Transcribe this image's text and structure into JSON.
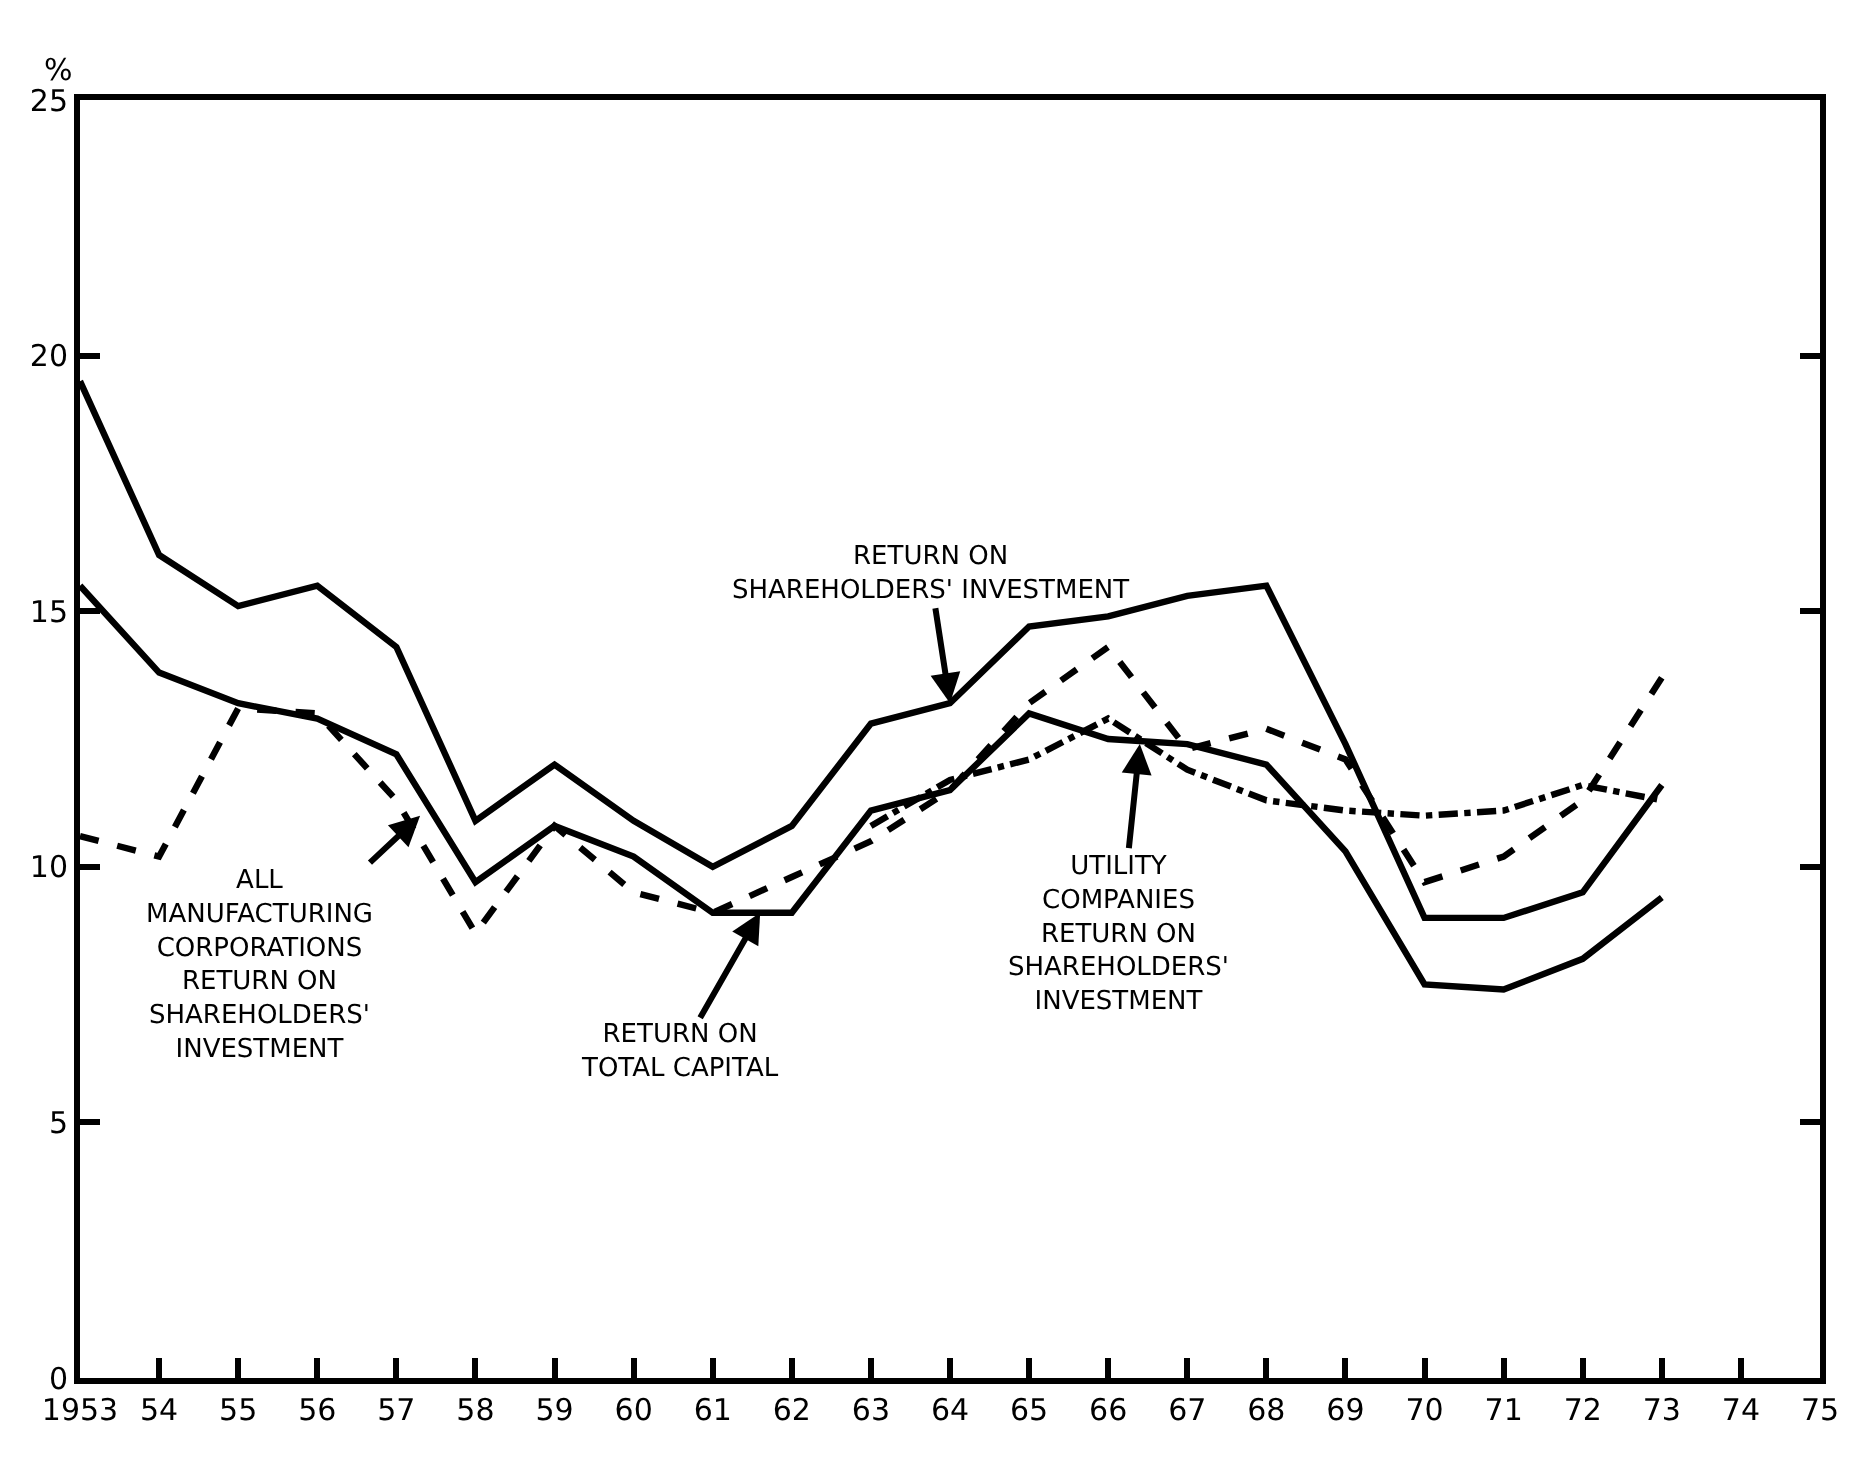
{
  "chart_data": {
    "type": "line",
    "ylabel": "%",
    "x": [
      1953,
      1954,
      1955,
      1956,
      1957,
      1958,
      1959,
      1960,
      1961,
      1962,
      1963,
      1964,
      1965,
      1966,
      1967,
      1968,
      1969,
      1970,
      1971,
      1972,
      1973
    ],
    "series": [
      {
        "color": "#000000",
        "line_style": "solid",
        "values": [
          19.5,
          16.1,
          15.1,
          15.5,
          14.3,
          10.9,
          12.0,
          10.9,
          10.0,
          10.8,
          12.8,
          13.2,
          14.7,
          14.9,
          15.3,
          15.5,
          12.4,
          9.0,
          9.0,
          9.5,
          11.6
        ]
      },
      {
        "color": "#000000",
        "line_style": "solid",
        "values": [
          15.5,
          13.8,
          13.2,
          12.9,
          12.2,
          9.7,
          10.8,
          10.2,
          9.1,
          9.1,
          11.1,
          11.5,
          13.0,
          12.5,
          12.4,
          12.0,
          10.3,
          7.7,
          7.6,
          8.2,
          9.4
        ]
      },
      {
        "color": "#000000",
        "line_style": "dashed",
        "values": [
          10.6,
          10.2,
          13.1,
          13.0,
          11.3,
          8.7,
          10.8,
          9.5,
          9.1,
          9.8,
          10.5,
          11.5,
          13.2,
          14.3,
          12.3,
          12.7,
          12.1,
          9.7,
          10.2,
          11.3,
          13.7
        ]
      },
      {
        "color": "#000000",
        "line_style": "dashdot",
        "values": [
          null,
          null,
          null,
          null,
          null,
          null,
          null,
          null,
          null,
          null,
          10.8,
          11.7,
          12.1,
          12.9,
          11.9,
          11.3,
          11.1,
          11.0,
          11.1,
          11.6,
          11.3
        ]
      }
    ],
    "xlim": [
      1953,
      1975
    ],
    "xticks": [
      1953,
      {
        "value": 1954,
        "label": "54"
      },
      {
        "value": 1955,
        "label": "55"
      },
      {
        "value": 1956,
        "label": "56"
      },
      {
        "value": 1957,
        "label": "57"
      },
      {
        "value": 1958,
        "label": "58"
      },
      {
        "value": 1959,
        "label": "59"
      },
      {
        "value": 1960,
        "label": "60"
      },
      {
        "value": 1961,
        "label": "61"
      },
      {
        "value": 1962,
        "label": "62"
      },
      {
        "value": 1963,
        "label": "63"
      },
      {
        "value": 1964,
        "label": "64"
      },
      {
        "value": 1965,
        "label": "65"
      },
      {
        "value": 1966,
        "label": "66"
      },
      {
        "value": 1967,
        "label": "67"
      },
      {
        "value": 1968,
        "label": "68"
      },
      {
        "value": 1969,
        "label": "69"
      },
      {
        "value": 1970,
        "label": "70"
      },
      {
        "value": 1971,
        "label": "71"
      },
      {
        "value": 1972,
        "label": "72"
      },
      {
        "value": 1973,
        "label": "73"
      },
      {
        "value": 1974,
        "label": "74"
      },
      {
        "value": 1975,
        "label": "75"
      }
    ],
    "ylim": [
      0,
      25
    ],
    "yticks": [
      0,
      5,
      10,
      15,
      20,
      25
    ],
    "legend": false,
    "marker": "none",
    "annotations": [
      {
        "text": "RETURN ON\nSHAREHOLDERS' INVESTMENT",
        "x": 1964,
        "y": 13.2
      },
      {
        "text": "ALL\nMANUFACTURING\nCORPORATIONS\nRETURN ON\nSHAREHOLDERS'\nINVESTMENT",
        "x": 1957.3,
        "y": 11.0
      },
      {
        "text": "RETURN ON\nTOTAL CAPITAL",
        "x": 1961.6,
        "y": 9.1
      },
      {
        "text": "UTILITY\nCOMPANIES\nRETURN ON\nSHAREHOLDERS'\nINVESTMENT",
        "x": 1966.4,
        "y": 12.4
      }
    ]
  }
}
